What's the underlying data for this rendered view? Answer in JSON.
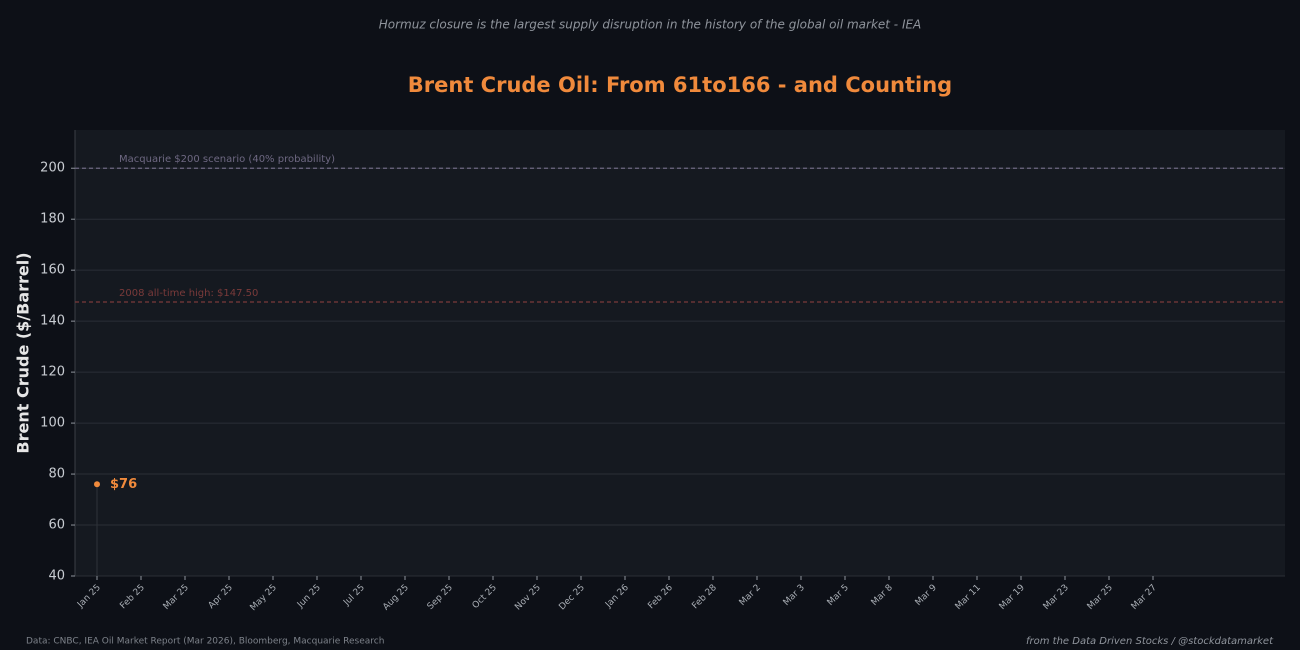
{
  "chart_data": {
    "type": "line",
    "subtitle": "Hormuz closure is the largest supply disruption in the history of the global oil market - IEA",
    "title": "Brent Crude Oil: From 61to166 - and Counting",
    "y_label": "Brent Crude ($/Barrel)",
    "categories": [
      "Jan 25",
      "Feb 25",
      "Mar 25",
      "Apr 25",
      "May 25",
      "Jun 25",
      "Jul 25",
      "Aug 25",
      "Sep 25",
      "Oct 25",
      "Nov 25",
      "Dec 25",
      "Jan 26",
      "Feb 26",
      "Feb 28",
      "Mar 2",
      "Mar 3",
      "Mar 5",
      "Mar 8",
      "Mar 9",
      "Mar 11",
      "Mar 19",
      "Mar 23",
      "Mar 25",
      "Mar 27"
    ],
    "series": [
      {
        "name": "Brent Crude",
        "color": "#f08a3c",
        "values": [
          76,
          null,
          null,
          null,
          null,
          null,
          null,
          null,
          null,
          null,
          null,
          null,
          null,
          null,
          null,
          null,
          null,
          null,
          null,
          null,
          null,
          null,
          null,
          null,
          null
        ],
        "value_labels": [
          "$76",
          null,
          null,
          null,
          null,
          null,
          null,
          null,
          null,
          null,
          null,
          null,
          null,
          null,
          null,
          null,
          null,
          null,
          null,
          null,
          null,
          null,
          null,
          null,
          null
        ]
      }
    ],
    "reference_lines": [
      {
        "value": 200,
        "label": "Macquarie $200 scenario (40% probability)",
        "color": "#6e6882"
      },
      {
        "value": 147.5,
        "label": "2008 all-time high: $147.50",
        "color": "#7a3a3a"
      }
    ],
    "ylim": [
      40,
      215
    ],
    "yticks": [
      40,
      60,
      80,
      100,
      120,
      140,
      160,
      180,
      200
    ],
    "grid": true,
    "source": "Data: CNBC, IEA Oil Market Report (Mar 2026), Bloomberg, Macquarie Research",
    "credit": "from the Data Driven Stocks / @stockdatamarket"
  }
}
